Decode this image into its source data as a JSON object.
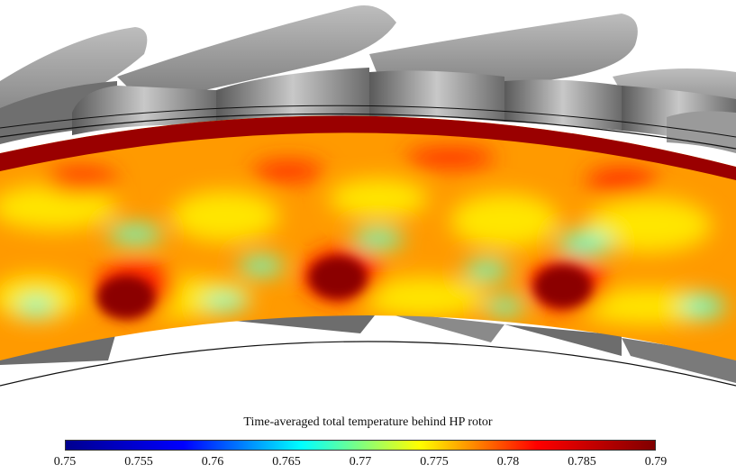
{
  "colorbar": {
    "title": "Time-averaged total temperature behind HP rotor",
    "min": 0.75,
    "max": 0.79,
    "ticks": [
      "0.75",
      "0.755",
      "0.76",
      "0.765",
      "0.77",
      "0.775",
      "0.78",
      "0.785",
      "0.79"
    ],
    "colormap": [
      "#00008f",
      "#0000ff",
      "#00ffff",
      "#ffff00",
      "#ff0000",
      "#800000"
    ]
  },
  "scene": {
    "blade_color": "#8a8a8a",
    "blade_highlight": "#d0d0d0",
    "hub_line_color": "#111111"
  }
}
